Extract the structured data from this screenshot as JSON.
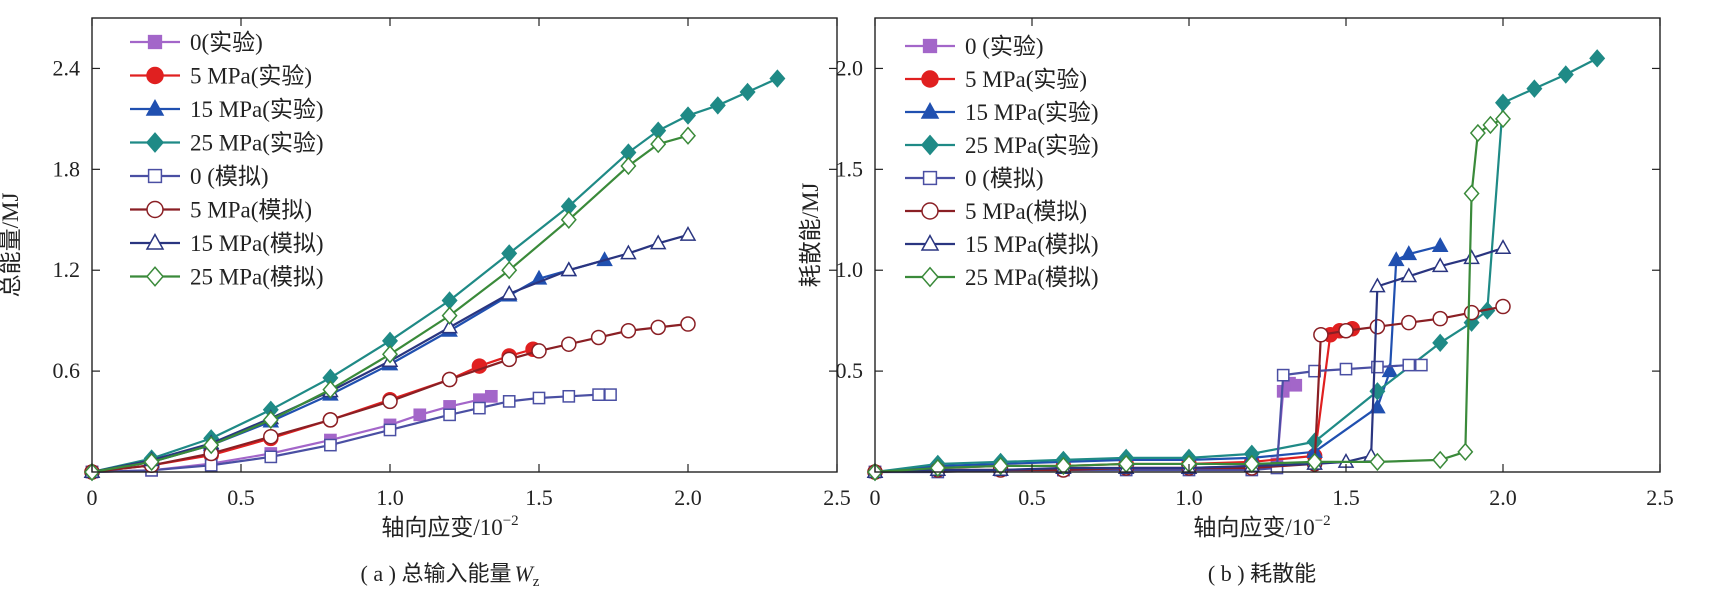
{
  "chart_data": [
    {
      "type": "line",
      "caption": "( a ) 总输入能量",
      "caption_symbol": "W",
      "caption_sub": "z",
      "xlabel": "轴向应变/10",
      "xlabel_exp": "−2",
      "ylabel": "总能量/MJ",
      "xlim": [
        0,
        2.5
      ],
      "ylim": [
        0,
        2.7
      ],
      "xticks": [
        0,
        0.5,
        1.0,
        1.5,
        2.0,
        2.5
      ],
      "xtick_labels": [
        "0",
        "0.5",
        "1.0",
        "1.5",
        "2.0",
        "2.5"
      ],
      "yticks": [
        0.6,
        1.2,
        1.8,
        2.4
      ],
      "ytick_labels": [
        "0.6",
        "1.2",
        "1.8",
        "2.4"
      ],
      "legend_position": "top-left",
      "series": [
        {
          "name": "0(实验)",
          "color": "#a366c9",
          "marker": "square",
          "filled": true,
          "x": [
            0,
            0.2,
            0.4,
            0.6,
            0.8,
            1.0,
            1.1,
            1.2,
            1.3,
            1.34
          ],
          "y": [
            0,
            0.01,
            0.05,
            0.11,
            0.19,
            0.28,
            0.34,
            0.39,
            0.43,
            0.45
          ]
        },
        {
          "name": "5 MPa(实验)",
          "color": "#e02020",
          "marker": "circle",
          "filled": true,
          "x": [
            0,
            0.2,
            0.4,
            0.6,
            0.8,
            1.0,
            1.2,
            1.3,
            1.4,
            1.48
          ],
          "y": [
            0,
            0.04,
            0.1,
            0.2,
            0.31,
            0.43,
            0.55,
            0.63,
            0.69,
            0.73
          ]
        },
        {
          "name": "15 MPa(实验)",
          "color": "#2050b0",
          "marker": "triangle",
          "filled": true,
          "x": [
            0,
            0.2,
            0.4,
            0.6,
            0.8,
            1.0,
            1.2,
            1.4,
            1.5,
            1.6,
            1.72
          ],
          "y": [
            0,
            0.06,
            0.16,
            0.3,
            0.46,
            0.64,
            0.84,
            1.05,
            1.15,
            1.2,
            1.26
          ]
        },
        {
          "name": "25 MPa(实验)",
          "color": "#1f8a86",
          "marker": "diamond",
          "filled": true,
          "x": [
            0,
            0.2,
            0.4,
            0.6,
            0.8,
            1.0,
            1.2,
            1.4,
            1.6,
            1.8,
            1.9,
            2.0,
            2.1,
            2.2,
            2.3
          ],
          "y": [
            0,
            0.08,
            0.2,
            0.37,
            0.56,
            0.78,
            1.02,
            1.3,
            1.58,
            1.9,
            2.03,
            2.12,
            2.18,
            2.26,
            2.34
          ]
        },
        {
          "name": "0 (模拟)",
          "color": "#4a4fa3",
          "marker": "square",
          "filled": false,
          "x": [
            0,
            0.2,
            0.4,
            0.6,
            0.8,
            1.0,
            1.2,
            1.3,
            1.4,
            1.5,
            1.6,
            1.7,
            1.74
          ],
          "y": [
            0,
            0.01,
            0.04,
            0.09,
            0.16,
            0.25,
            0.34,
            0.38,
            0.42,
            0.44,
            0.45,
            0.46,
            0.46
          ]
        },
        {
          "name": "5 MPa(模拟)",
          "color": "#8a1f24",
          "marker": "circle",
          "filled": false,
          "x": [
            0,
            0.2,
            0.4,
            0.6,
            0.8,
            1.0,
            1.2,
            1.4,
            1.5,
            1.6,
            1.7,
            1.8,
            1.9,
            2.0
          ],
          "y": [
            0,
            0.04,
            0.11,
            0.21,
            0.31,
            0.42,
            0.55,
            0.67,
            0.72,
            0.76,
            0.8,
            0.84,
            0.86,
            0.88
          ]
        },
        {
          "name": "15 MPa(模拟)",
          "color": "#2a3580",
          "marker": "triangle",
          "filled": false,
          "x": [
            0,
            0.2,
            0.4,
            0.6,
            0.8,
            1.0,
            1.2,
            1.4,
            1.6,
            1.8,
            1.9,
            2.0
          ],
          "y": [
            0,
            0.07,
            0.17,
            0.32,
            0.48,
            0.66,
            0.86,
            1.06,
            1.2,
            1.3,
            1.36,
            1.41
          ]
        },
        {
          "name": "25 MPa(模拟)",
          "color": "#3a8a3a",
          "marker": "diamond",
          "filled": false,
          "x": [
            0,
            0.2,
            0.4,
            0.6,
            0.8,
            1.0,
            1.2,
            1.4,
            1.6,
            1.8,
            1.9,
            2.0
          ],
          "y": [
            0,
            0.06,
            0.16,
            0.31,
            0.49,
            0.7,
            0.93,
            1.2,
            1.5,
            1.82,
            1.95,
            2.0
          ]
        }
      ]
    },
    {
      "type": "line",
      "caption": "( b ) 耗散能",
      "xlabel": "轴向应变/10",
      "xlabel_exp": "−2",
      "ylabel": "耗散能/MJ",
      "xlim": [
        0,
        2.5
      ],
      "ylim": [
        0,
        2.25
      ],
      "xticks": [
        0,
        0.5,
        1.0,
        1.5,
        2.0,
        2.5
      ],
      "xtick_labels": [
        "0",
        "0.5",
        "1.0",
        "1.5",
        "2.0",
        "2.5"
      ],
      "yticks": [
        0.5,
        1.0,
        1.5,
        2.0
      ],
      "ytick_labels": [
        "0.5",
        "1.0",
        "1.5",
        "2.0"
      ],
      "legend_position": "top-left",
      "series": [
        {
          "name": "0 (实验)",
          "color": "#a366c9",
          "marker": "square",
          "filled": true,
          "x": [
            0,
            0.2,
            0.4,
            0.6,
            0.8,
            1.0,
            1.2,
            1.28,
            1.3,
            1.32,
            1.34
          ],
          "y": [
            0,
            0.01,
            0.01,
            0.01,
            0.02,
            0.02,
            0.03,
            0.04,
            0.4,
            0.44,
            0.43
          ]
        },
        {
          "name": "5 MPa(实验)",
          "color": "#e02020",
          "marker": "circle",
          "filled": true,
          "x": [
            0,
            0.2,
            0.4,
            0.6,
            0.8,
            1.0,
            1.2,
            1.4,
            1.45,
            1.48,
            1.52
          ],
          "y": [
            0,
            0.02,
            0.03,
            0.03,
            0.04,
            0.04,
            0.05,
            0.08,
            0.68,
            0.7,
            0.71
          ]
        },
        {
          "name": "15 MPa(实验)",
          "color": "#2050b0",
          "marker": "triangle",
          "filled": true,
          "x": [
            0,
            0.2,
            0.4,
            0.6,
            0.8,
            1.0,
            1.2,
            1.4,
            1.6,
            1.64,
            1.66,
            1.7,
            1.8
          ],
          "y": [
            0,
            0.03,
            0.04,
            0.05,
            0.06,
            0.06,
            0.07,
            0.1,
            0.32,
            0.5,
            1.05,
            1.08,
            1.12
          ]
        },
        {
          "name": "25 MPa(实验)",
          "color": "#1f8a86",
          "marker": "diamond",
          "filled": true,
          "x": [
            0,
            0.2,
            0.4,
            0.6,
            0.8,
            1.0,
            1.2,
            1.4,
            1.6,
            1.8,
            1.9,
            1.95,
            2.0,
            2.1,
            2.2,
            2.3
          ],
          "y": [
            0,
            0.04,
            0.05,
            0.06,
            0.07,
            0.07,
            0.09,
            0.15,
            0.4,
            0.64,
            0.74,
            0.8,
            1.83,
            1.9,
            1.97,
            2.05
          ]
        },
        {
          "name": "0 (模拟)",
          "color": "#4a4fa3",
          "marker": "square",
          "filled": false,
          "x": [
            0,
            0.2,
            0.4,
            0.6,
            0.8,
            1.0,
            1.2,
            1.28,
            1.3,
            1.4,
            1.5,
            1.6,
            1.7,
            1.74
          ],
          "y": [
            0,
            0,
            0.01,
            0.01,
            0.01,
            0.01,
            0.01,
            0.02,
            0.48,
            0.5,
            0.51,
            0.52,
            0.53,
            0.53
          ]
        },
        {
          "name": "5 MPa(模拟)",
          "color": "#8a1f24",
          "marker": "circle",
          "filled": false,
          "x": [
            0,
            0.2,
            0.4,
            0.6,
            0.8,
            1.0,
            1.2,
            1.4,
            1.42,
            1.5,
            1.6,
            1.7,
            1.8,
            1.9,
            2.0
          ],
          "y": [
            0,
            0.01,
            0.01,
            0.01,
            0.02,
            0.02,
            0.02,
            0.04,
            0.68,
            0.7,
            0.72,
            0.74,
            0.76,
            0.79,
            0.82
          ]
        },
        {
          "name": "15 MPa(模拟)",
          "color": "#2a3580",
          "marker": "triangle",
          "filled": false,
          "x": [
            0,
            0.2,
            0.4,
            0.6,
            0.8,
            1.0,
            1.2,
            1.4,
            1.5,
            1.58,
            1.6,
            1.7,
            1.8,
            1.9,
            2.0
          ],
          "y": [
            0,
            0.01,
            0.01,
            0.02,
            0.02,
            0.02,
            0.03,
            0.04,
            0.05,
            0.08,
            0.92,
            0.97,
            1.02,
            1.06,
            1.11
          ]
        },
        {
          "name": "25 MPa(模拟)",
          "color": "#3a8a3a",
          "marker": "diamond",
          "filled": false,
          "x": [
            0,
            0.2,
            0.4,
            0.6,
            0.8,
            1.0,
            1.2,
            1.4,
            1.6,
            1.8,
            1.88,
            1.9,
            1.92,
            1.96,
            2.0
          ],
          "y": [
            0,
            0.02,
            0.03,
            0.03,
            0.04,
            0.04,
            0.04,
            0.05,
            0.05,
            0.06,
            0.1,
            1.38,
            1.68,
            1.72,
            1.75
          ]
        }
      ]
    }
  ]
}
